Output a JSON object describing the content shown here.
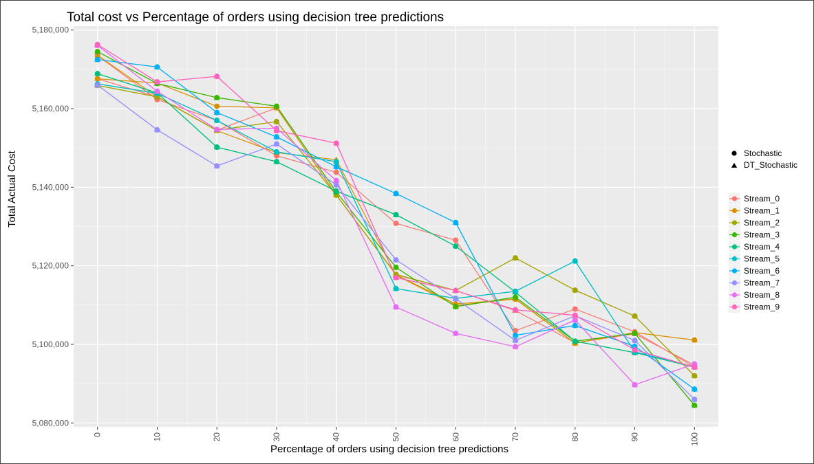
{
  "chart_data": {
    "type": "line",
    "title": "Total cost vs Percentage of orders using decision tree predictions",
    "xlabel": "Percentage of orders using decision tree predictions",
    "ylabel": "Total Actual Cost",
    "x": [
      0,
      10,
      20,
      30,
      40,
      50,
      60,
      70,
      80,
      90,
      100
    ],
    "x_tick_labels": [
      "0",
      "10",
      "20",
      "30",
      "40",
      "50",
      "60",
      "70",
      "80",
      "90",
      "100"
    ],
    "y_ticks": [
      5080000,
      5100000,
      5120000,
      5140000,
      5160000,
      5180000
    ],
    "y_tick_labels": [
      "5,080,000",
      "5,100,000",
      "5,120,000",
      "5,140,000",
      "5,160,000",
      "5,180,000"
    ],
    "ylim": [
      5079000,
      5181000
    ],
    "xlim": [
      -4,
      104
    ],
    "grid": true,
    "legend_position": "right",
    "shape_legend": [
      {
        "label": "Stochastic",
        "shape": "circle"
      },
      {
        "label": "DT_Stochastic",
        "shape": "triangle"
      }
    ],
    "series": [
      {
        "name": "Stream_0",
        "color": "#F8766D",
        "stochastic": [
          5173500,
          5162300,
          5157000,
          5148000,
          5143800,
          5130800,
          5126500,
          5103500,
          5109000,
          5103200,
          5094200
        ],
        "dt_stochastic": [
          5167600,
          5163000,
          5154500,
          5160200,
          5138000,
          5117700,
          5113700,
          5108600,
          5100400,
          5102700,
          5094700
        ]
      },
      {
        "name": "Stream_1",
        "color": "#D89000",
        "stochastic": [
          5167600,
          5166500,
          5160600,
          5160200,
          5138000,
          5117700,
          5110300,
          5111500,
          5100300,
          5103000,
          5101100
        ],
        "dt_stochastic": [
          5173600,
          5163000,
          5154400,
          5148800,
          5147000,
          5117600,
          5109900,
          5111600,
          5100300,
          5103000,
          5101100
        ]
      },
      {
        "name": "Stream_2",
        "color": "#A3A500",
        "stochastic": [
          5165900,
          5163000,
          5154500,
          5156700,
          5138000,
          5117800,
          5113700,
          5122000,
          5113800,
          5107200,
          5092000
        ],
        "dt_stochastic": [
          5165900,
          5163000,
          5154500,
          5156700,
          5138000,
          5117800,
          5113700,
          5122000,
          5113800,
          5107200,
          5092000
        ]
      },
      {
        "name": "Stream_3",
        "color": "#39B600",
        "stochastic": [
          5174500,
          5166400,
          5162800,
          5160600,
          5138800,
          5119600,
          5109600,
          5112000,
          5100800,
          5102800,
          5084500
        ],
        "dt_stochastic": [
          5174500,
          5166400,
          5162800,
          5160600,
          5138800,
          5119600,
          5109600,
          5112000,
          5100800,
          5102800,
          5084500
        ]
      },
      {
        "name": "Stream_4",
        "color": "#00BF7D",
        "stochastic": [
          5168900,
          5164000,
          5150200,
          5146500,
          5139000,
          5133000,
          5125000,
          5113300,
          5100800,
          5097900,
          5094200
        ],
        "dt_stochastic": [
          5168900,
          5164000,
          5150200,
          5146500,
          5139000,
          5133000,
          5125000,
          5113300,
          5100800,
          5097900,
          5094200
        ]
      },
      {
        "name": "Stream_5",
        "color": "#00BFC4",
        "stochastic": [
          5166300,
          5163900,
          5157000,
          5149000,
          5146500,
          5114200,
          5111700,
          5113500,
          5121200,
          5098100,
          5094300
        ],
        "dt_stochastic": [
          5166300,
          5163900,
          5157000,
          5149000,
          5146500,
          5114200,
          5111700,
          5113500,
          5121200,
          5098100,
          5094300
        ]
      },
      {
        "name": "Stream_6",
        "color": "#00B0F6",
        "stochastic": [
          5172500,
          5170600,
          5159000,
          5152800,
          5145200,
          5138400,
          5131000,
          5102300,
          5104800,
          5099500,
          5088600
        ],
        "dt_stochastic": [
          5172500,
          5170600,
          5159000,
          5152800,
          5145200,
          5138400,
          5131000,
          5102300,
          5104800,
          5099500,
          5088600
        ]
      },
      {
        "name": "Stream_7",
        "color": "#9590FF",
        "stochastic": [
          5166000,
          5154600,
          5145400,
          5151000,
          5140600,
          5121500,
          5111600,
          5101000,
          5107300,
          5101000,
          5086000
        ],
        "dt_stochastic": [
          5166000,
          5154600,
          5145400,
          5151000,
          5140600,
          5121500,
          5111600,
          5101000,
          5107300,
          5101000,
          5086000
        ]
      },
      {
        "name": "Stream_8",
        "color": "#E76BF3",
        "stochastic": [
          5176100,
          5164400,
          5154700,
          5155000,
          5141700,
          5109500,
          5102800,
          5099400,
          5106200,
          5089700,
          5095000
        ],
        "dt_stochastic": [
          5176100,
          5164400,
          5154700,
          5155000,
          5141700,
          5109500,
          5102800,
          5099400,
          5106200,
          5089700,
          5095000
        ]
      },
      {
        "name": "Stream_9",
        "color": "#FF62BC",
        "stochastic": [
          5176300,
          5166800,
          5168200,
          5154400,
          5151200,
          5117000,
          5113700,
          5108800,
          5107400,
          5098600,
          5094200
        ],
        "dt_stochastic": [
          5176300,
          5166800,
          5168200,
          5154400,
          5151200,
          5117000,
          5113700,
          5108800,
          5107400,
          5098600,
          5094200
        ]
      }
    ]
  }
}
